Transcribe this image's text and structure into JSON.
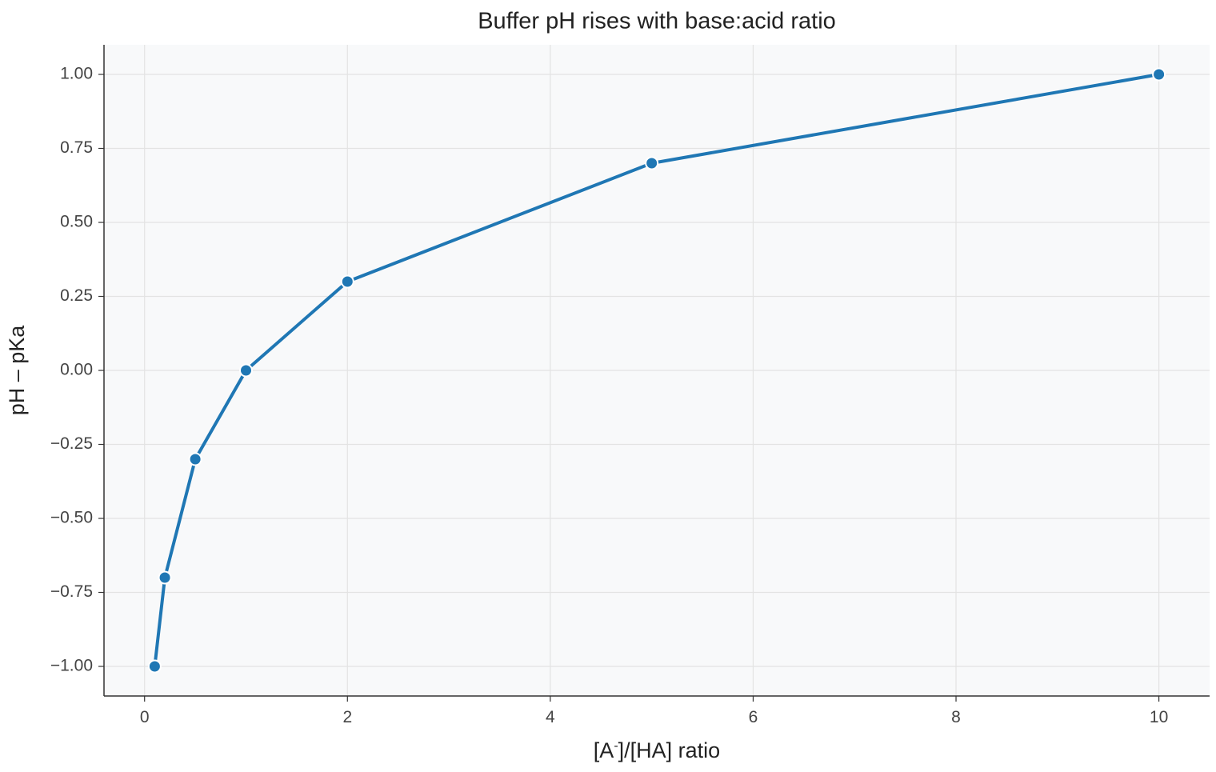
{
  "chart_data": {
    "type": "line",
    "title": "Buffer pH rises with base:acid ratio",
    "xlabel_parts": [
      "[A",
      "-",
      "]/[HA] ratio"
    ],
    "ylabel": "pH – pKa",
    "xlim": [
      -0.4,
      10.5
    ],
    "ylim": [
      -1.1,
      1.1
    ],
    "xticks": [
      0,
      2,
      4,
      6,
      8,
      10
    ],
    "xtick_labels": [
      "0",
      "2",
      "4",
      "6",
      "8",
      "10"
    ],
    "yticks": [
      -1.0,
      -0.75,
      -0.5,
      -0.25,
      0.0,
      0.25,
      0.5,
      0.75,
      1.0
    ],
    "ytick_labels": [
      "−1.00",
      "−0.75",
      "−0.50",
      "−0.25",
      "0.00",
      "0.25",
      "0.50",
      "0.75",
      "1.00"
    ],
    "grid": true,
    "series": [
      {
        "x": [
          0.1,
          0.2,
          0.5,
          1,
          2,
          5,
          10
        ],
        "y": [
          -1.0,
          -0.7,
          -0.3,
          0.0,
          0.3,
          0.7,
          1.0
        ],
        "color": "#1f77b4"
      }
    ],
    "colors": {
      "line": "#1f77b4",
      "plot_background": "#f8f9fa",
      "grid": "#e3e3e3",
      "axis": "#333333"
    }
  }
}
